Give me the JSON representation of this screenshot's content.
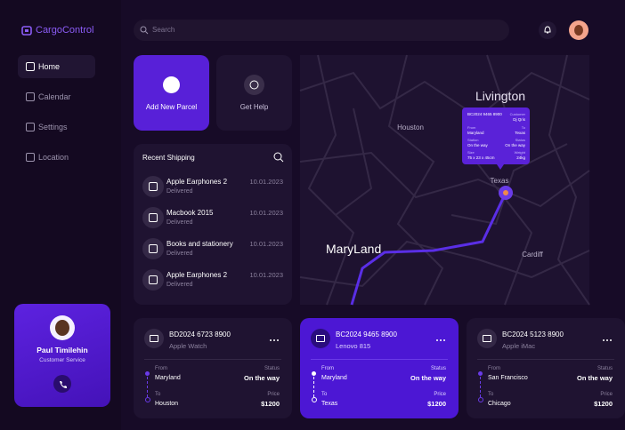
{
  "brand": "CargoControl",
  "search_placeholder": "Search",
  "nav": [
    "Home",
    "Calendar",
    "Settings",
    "Location"
  ],
  "actions": [
    "Add New Parcel",
    "Get Help"
  ],
  "recent": {
    "title": "Recent Shipping",
    "items": [
      {
        "name": "Apple Earphones 2",
        "status": "Delivered",
        "date": "10.01.2023"
      },
      {
        "name": "Macbook 2015",
        "status": "Delivered",
        "date": "10.01.2023"
      },
      {
        "name": "Books and stationery",
        "status": "Delivered",
        "date": "10.01.2023"
      },
      {
        "name": "Apple Earphones 2",
        "status": "Delivered",
        "date": "10.01.2023"
      }
    ]
  },
  "map": {
    "labels": [
      "Livington",
      "Houston",
      "Texas",
      "MaryLand",
      "Cardiff"
    ],
    "popup": {
      "id": "BC2024 9465 8900",
      "customer": {
        "label": "Customer",
        "value": "Dj Qris"
      },
      "fields": [
        {
          "label": "From",
          "value": "Maryland"
        },
        {
          "label": "To",
          "value": "Texas"
        },
        {
          "label": "Station",
          "value": "On the way"
        },
        {
          "label": "Status",
          "value": "On the way"
        },
        {
          "label": "Size",
          "value": "75 x 23 x 45cm"
        },
        {
          "label": "Weight",
          "value": "24kg"
        }
      ]
    }
  },
  "profile": {
    "name": "Paul Timilehin",
    "role": "Customer Service"
  },
  "cards": [
    {
      "id": "BD2024 6723 8900",
      "device": "Apple Watch",
      "from_label": "From",
      "from": "Maryland",
      "status_label": "Status",
      "status": "On the way",
      "to_label": "To",
      "to": "Houston",
      "price_label": "Price",
      "price": "$1200"
    },
    {
      "id": "BC2024 9465 8900",
      "device": "Lenovo 815",
      "from_label": "From",
      "from": "Maryland",
      "status_label": "Status",
      "status": "On the way",
      "to_label": "To",
      "to": "Texas",
      "price_label": "Price",
      "price": "$1200"
    },
    {
      "id": "BC2024 5123 8900",
      "device": "Apple iMac",
      "from_label": "From",
      "from": "San Francisco",
      "status_label": "Status",
      "status": "On the way",
      "to_label": "To",
      "to": "Chicago",
      "price_label": "Price",
      "price": "$1200"
    }
  ]
}
